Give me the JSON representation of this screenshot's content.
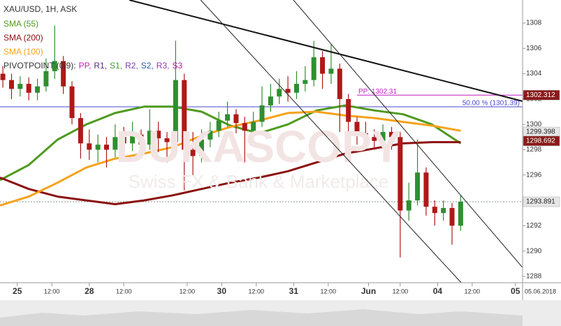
{
  "header": {
    "instrument": "XAU/USD, 1H, ASK"
  },
  "watermark": {
    "brand": "DUKASCOPY",
    "tagline": "Swiss FX & Bank & Marketplace"
  },
  "pivot_legend": {
    "label": "PIVOTPOINT (0|9):",
    "items": [
      {
        "text": "PP,",
        "color": "#c21cc2"
      },
      {
        "text": "R1,",
        "color": "#5a2d82"
      },
      {
        "text": "S1,",
        "color": "#3c9a2c"
      },
      {
        "text": "R2,",
        "color": "#7a3db8"
      },
      {
        "text": "S2,",
        "color": "#2d5aa8"
      },
      {
        "text": "R3,",
        "color": "#8a3db0"
      },
      {
        "text": "S3",
        "color": "#b01c9a"
      }
    ]
  },
  "chart_data": {
    "type": "candlestick",
    "up_color": "#2f8f2f",
    "down_color": "#b01818",
    "xlim": [
      -6,
      175.5
    ],
    "ylim": [
      1287.5,
      1309.82
    ],
    "x": [
      -5,
      -2,
      1,
      4,
      7,
      10,
      13,
      16,
      19,
      22,
      25,
      28,
      31,
      34,
      37,
      40,
      43,
      46,
      49,
      52,
      55,
      58,
      61,
      64,
      67,
      70,
      73,
      76,
      79,
      82,
      85,
      88,
      91,
      94,
      97,
      100,
      103,
      106,
      109,
      112,
      115,
      118,
      121,
      124,
      127,
      130,
      133,
      136,
      139,
      142,
      145,
      148,
      151,
      154
    ],
    "open": [
      1304.0,
      1303.5,
      1302.8,
      1303.2,
      1302.5,
      1303.0,
      1304.2,
      1305.0,
      1303.0,
      1300.5,
      1298.5,
      1298.0,
      1298.4,
      1298.0,
      1299.0,
      1298.5,
      1299.2,
      1298.4,
      1299.5,
      1298.9,
      1298.6,
      1303.5,
      1298.0,
      1297.5,
      1298.8,
      1299.5,
      1300.3,
      1300.8,
      1300.1,
      1299.5,
      1300.2,
      1301.5,
      1302.2,
      1302.8,
      1302.5,
      1303.2,
      1303.5,
      1305.3,
      1304.0,
      1304.4,
      1302.0,
      1300.2,
      1299.3,
      1299.0,
      1298.7,
      1299.4,
      1299.0,
      1293.2,
      1294.0,
      1296.2,
      1293.5,
      1293.0,
      1293.4,
      1292.0
    ],
    "high": [
      1304.6,
      1304.0,
      1303.8,
      1303.7,
      1303.6,
      1305.2,
      1307.8,
      1305.4,
      1303.4,
      1300.9,
      1299.6,
      1299.2,
      1299.0,
      1300.0,
      1299.8,
      1300.2,
      1299.6,
      1301.2,
      1300.2,
      1299.4,
      1306.6,
      1304.0,
      1299.4,
      1299.6,
      1300.2,
      1301.0,
      1301.8,
      1301.2,
      1300.6,
      1301.0,
      1303.0,
      1303.2,
      1303.6,
      1303.8,
      1304.2,
      1304.6,
      1306.6,
      1305.8,
      1306.3,
      1304.8,
      1302.4,
      1300.6,
      1300.2,
      1299.6,
      1300.0,
      1299.8,
      1299.4,
      1295.4,
      1298.8,
      1296.6,
      1294.0,
      1294.0,
      1293.8,
      1294.4
    ],
    "low": [
      1302.9,
      1302.0,
      1302.2,
      1301.9,
      1301.9,
      1302.6,
      1303.6,
      1302.4,
      1300.0,
      1297.3,
      1297.2,
      1297.0,
      1296.6,
      1297.4,
      1297.8,
      1297.9,
      1297.6,
      1298.0,
      1297.8,
      1297.0,
      1298.2,
      1294.8,
      1296.0,
      1297.0,
      1298.2,
      1299.0,
      1299.8,
      1299.3,
      1297.0,
      1298.8,
      1299.8,
      1301.0,
      1301.6,
      1301.8,
      1302.0,
      1302.6,
      1303.0,
      1302.8,
      1303.2,
      1299.4,
      1299.2,
      1298.4,
      1298.2,
      1298.0,
      1298.1,
      1298.0,
      1289.5,
      1292.4,
      1293.6,
      1292.8,
      1292.0,
      1292.4,
      1290.5,
      1291.6
    ],
    "close": [
      1303.5,
      1302.8,
      1303.2,
      1302.5,
      1303.0,
      1304.2,
      1305.0,
      1303.0,
      1300.5,
      1298.5,
      1298.0,
      1298.4,
      1298.0,
      1299.0,
      1298.5,
      1299.2,
      1298.4,
      1299.5,
      1298.9,
      1298.6,
      1303.5,
      1298.0,
      1297.5,
      1298.8,
      1299.5,
      1300.3,
      1300.8,
      1300.1,
      1299.5,
      1300.2,
      1301.5,
      1302.2,
      1302.8,
      1302.5,
      1303.2,
      1303.5,
      1305.3,
      1304.0,
      1304.4,
      1302.0,
      1300.2,
      1299.3,
      1299.0,
      1298.7,
      1299.4,
      1299.0,
      1293.2,
      1294.0,
      1296.2,
      1293.5,
      1293.0,
      1293.4,
      1292.0,
      1293.9
    ],
    "indicators": [
      {
        "name": "SMA (55)",
        "color": "#4e9a1e",
        "x": [
          -6,
          4,
          14,
          24,
          34,
          44,
          54,
          64,
          74,
          84,
          94,
          104,
          114,
          124,
          134,
          144,
          154
        ],
        "values": [
          1295.6,
          1296.8,
          1298.8,
          1300.0,
          1300.9,
          1301.4,
          1301.4,
          1301.0,
          1299.9,
          1299.3,
          1300.0,
          1301.1,
          1301.5,
          1301.1,
          1300.8,
          1300.0,
          1298.5
        ]
      },
      {
        "name": "SMA (200)",
        "color": "#8b0f0f",
        "x": [
          -6,
          4,
          14,
          24,
          34,
          44,
          54,
          64,
          74,
          84,
          94,
          104,
          114,
          124,
          134,
          144,
          154
        ],
        "values": [
          1295.8,
          1294.9,
          1294.3,
          1294.0,
          1293.7,
          1294.0,
          1294.4,
          1294.9,
          1295.4,
          1295.8,
          1296.3,
          1297.0,
          1297.7,
          1298.1,
          1298.5,
          1298.6,
          1298.6
        ]
      },
      {
        "name": "SMA (100)",
        "color": "#f5a21a",
        "x": [
          -6,
          4,
          14,
          24,
          34,
          44,
          54,
          64,
          74,
          84,
          94,
          104,
          114,
          124,
          134,
          144,
          154
        ],
        "values": [
          1293.6,
          1294.3,
          1295.4,
          1296.6,
          1297.3,
          1297.7,
          1298.2,
          1299.1,
          1299.8,
          1300.3,
          1300.9,
          1301.0,
          1300.7,
          1300.5,
          1300.2,
          1299.9,
          1299.5
        ]
      }
    ],
    "trend_lines": [
      {
        "color": "#111111",
        "x": [
          38.9,
          175.5
        ],
        "y": [
          1309.82,
          1301.83
        ]
      },
      {
        "color": "#222222",
        "x": [
          63.7,
          154.2
        ],
        "y": [
          1309.82,
          1287.5
        ]
      },
      {
        "color": "#222222",
        "x": [
          95.9,
          175.5
        ],
        "y": [
          1309.82,
          1288.7
        ]
      }
    ],
    "levels": [
      {
        "value": 1302.31,
        "label": "PP: 1302.31",
        "color": "#c21cc2",
        "from": 118
      },
      {
        "value": 1301.39,
        "label": "50.00 % (1301.39)",
        "color": "#4a4ad0",
        "from": -6
      }
    ],
    "current_price": 1293.891,
    "price_tags": [
      {
        "value": 1302.312,
        "bg": "#8b1a1a",
        "fg": "#ffffff"
      },
      {
        "value": 1299.398,
        "bg": "#e6e6e6",
        "fg": "#222222"
      },
      {
        "value": 1298.692,
        "bg": "#8b1a1a",
        "fg": "#ffffff"
      },
      {
        "value": 1293.891,
        "bg": "#e6e6e6",
        "fg": "#222222"
      }
    ],
    "yticks": [
      1288,
      1290,
      1292,
      1294,
      1296,
      1298,
      1300,
      1302,
      1304,
      1306,
      1308
    ],
    "xticks": [
      {
        "value": 0,
        "label": "25"
      },
      {
        "value": 12,
        "label": "12:00"
      },
      {
        "value": 25,
        "label": "28"
      },
      {
        "value": 37,
        "label": "12:00"
      },
      {
        "value": 59,
        "label": "12:00"
      },
      {
        "value": 71,
        "label": "30"
      },
      {
        "value": 83,
        "label": "12:00"
      },
      {
        "value": 96,
        "label": "31"
      },
      {
        "value": 108,
        "label": "12:00"
      },
      {
        "value": 122,
        "label": "Jun"
      },
      {
        "value": 133,
        "label": "12:00"
      },
      {
        "value": 146,
        "label": "04"
      },
      {
        "value": 158,
        "label": "12:00"
      },
      {
        "value": 173,
        "label": "05"
      }
    ],
    "date_label": "05.06.2018"
  }
}
